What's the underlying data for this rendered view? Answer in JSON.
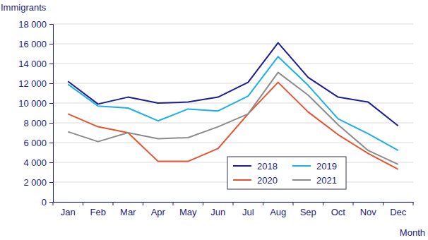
{
  "chart_data": {
    "type": "line",
    "x_label": "Month",
    "y_label": "Immigrants",
    "categories": [
      "Jan",
      "Feb",
      "Mar",
      "Apr",
      "May",
      "Jun",
      "Jul",
      "Aug",
      "Sep",
      "Oct",
      "Nov",
      "Dec"
    ],
    "series": [
      {
        "name": "2018",
        "color": "#1c1c96",
        "values": [
          12200,
          9900,
          10600,
          10000,
          10100,
          10600,
          12100,
          16100,
          12600,
          10600,
          10100,
          7700
        ]
      },
      {
        "name": "2019",
        "color": "#1bb0e8",
        "values": [
          11900,
          9700,
          9500,
          8200,
          9400,
          9200,
          10700,
          14700,
          11800,
          8400,
          6900,
          5200
        ]
      },
      {
        "name": "2020",
        "color": "#e8522e",
        "values": [
          8900,
          7600,
          7000,
          4100,
          4100,
          5400,
          8900,
          12100,
          9100,
          6800,
          4900,
          3300
        ]
      },
      {
        "name": "2021",
        "color": "#8c8c8c",
        "values": [
          7100,
          6100,
          7000,
          6400,
          6500,
          7600,
          8900,
          13100,
          10800,
          7800,
          5200,
          3800
        ]
      }
    ],
    "ylim": [
      0,
      18000
    ],
    "yticks": [
      0,
      {
        "value": 2000,
        "label": "2 000"
      },
      {
        "value": 4000,
        "label": "4 000"
      },
      {
        "value": 6000,
        "label": "6 000"
      },
      {
        "value": 8000,
        "label": "8 000"
      },
      {
        "value": 10000,
        "label": "10 000"
      },
      {
        "value": 12000,
        "label": "12 000"
      },
      {
        "value": 14000,
        "label": "14 000"
      },
      {
        "value": 16000,
        "label": "16 000"
      },
      {
        "value": 18000,
        "label": "18 000"
      }
    ],
    "grid": true,
    "legend": "lower right"
  }
}
